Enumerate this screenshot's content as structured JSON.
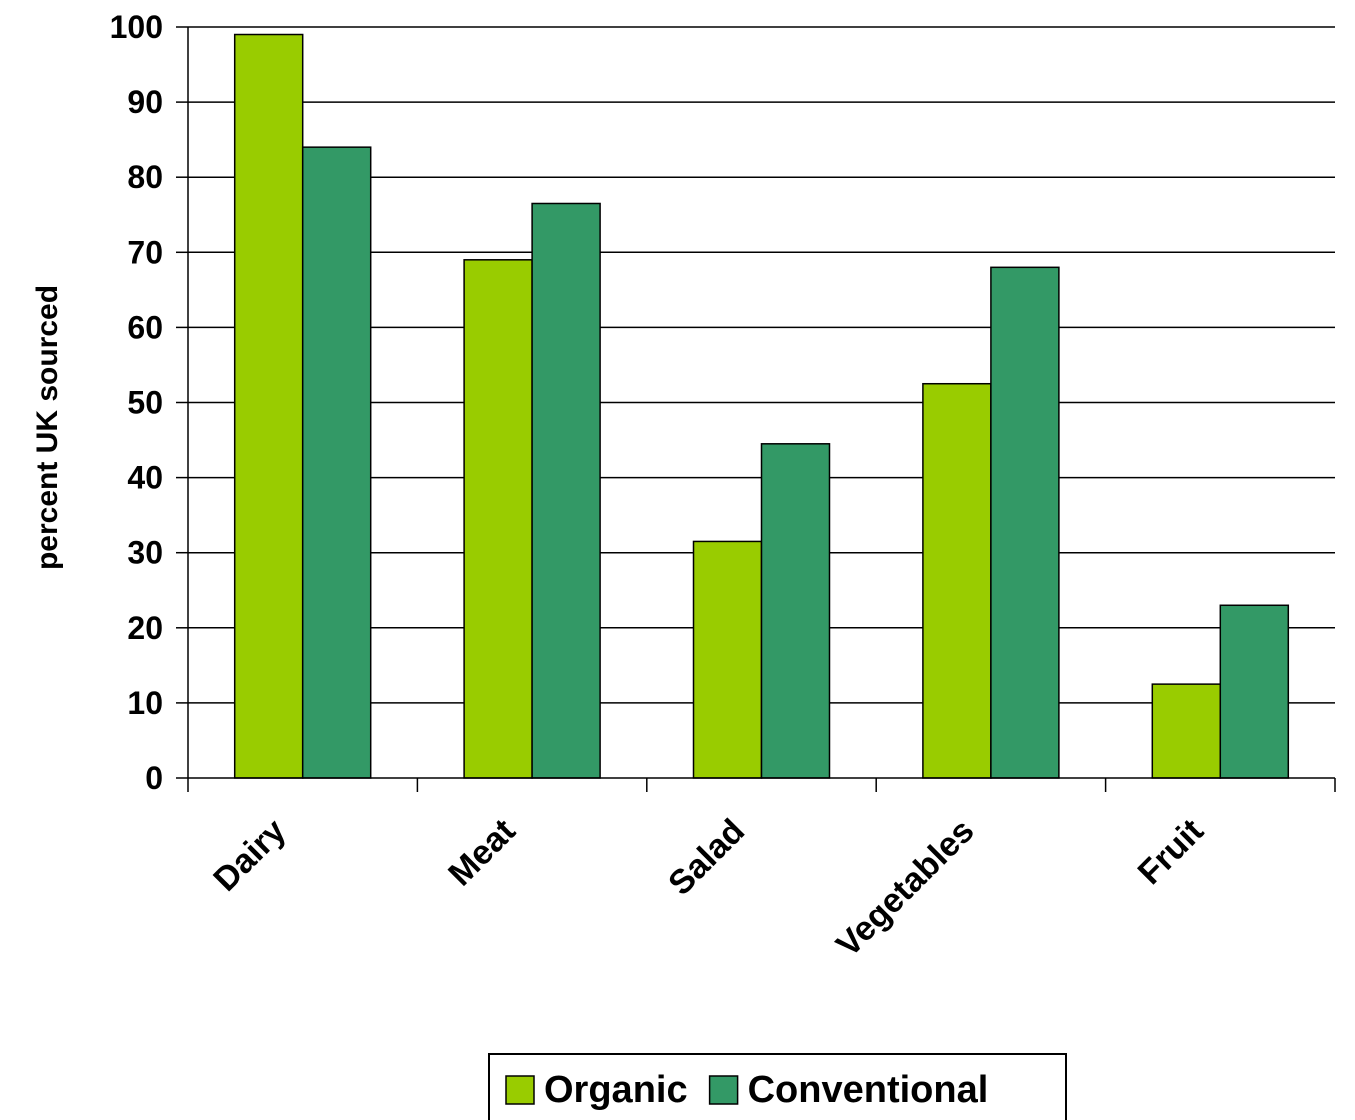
{
  "chart_data": {
    "type": "bar",
    "ylabel": "percent UK sourced",
    "xlabel": "",
    "ylim": [
      0,
      100
    ],
    "yticks": [
      0,
      10,
      20,
      30,
      40,
      50,
      60,
      70,
      80,
      90,
      100
    ],
    "categories": [
      "Dairy",
      "Meat",
      "Salad",
      "Vegetables",
      "Fruit"
    ],
    "series": [
      {
        "name": "Organic",
        "color": "#99CC00",
        "values": [
          99,
          69,
          31.5,
          52.5,
          12.5
        ]
      },
      {
        "name": "Conventional",
        "color": "#339966",
        "values": [
          84,
          76.5,
          44.5,
          68,
          23
        ]
      }
    ],
    "grid": true,
    "legend_position": "bottom"
  }
}
